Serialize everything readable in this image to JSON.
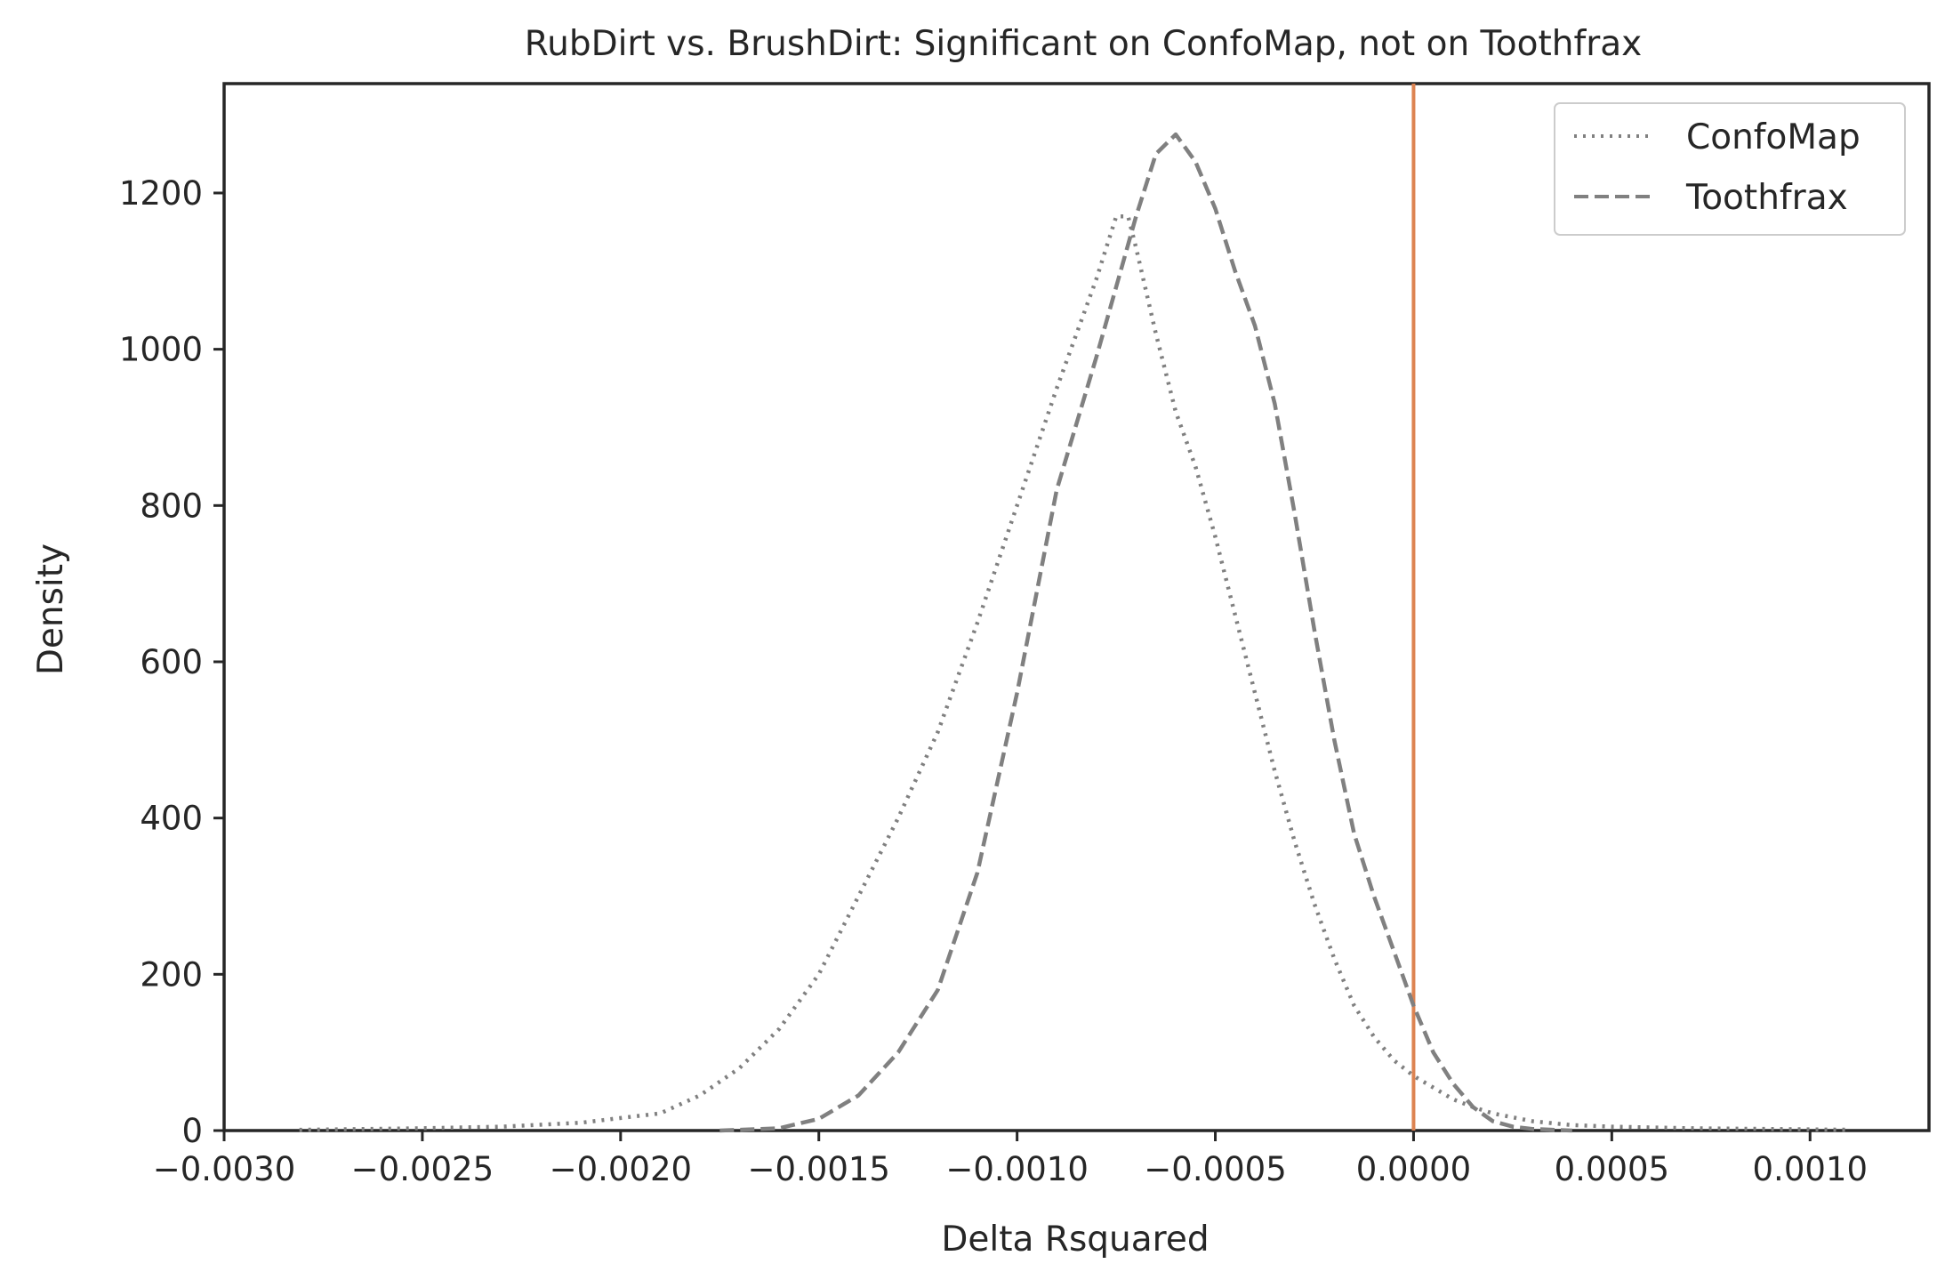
{
  "chart_data": {
    "type": "line",
    "title": "RubDirt vs. BrushDirt: Significant on ConfoMap, not on Toothfrax",
    "xlabel": "Delta Rsquared",
    "ylabel": "Density",
    "xlim": [
      -0.003,
      0.0013
    ],
    "ylim": [
      0,
      1340
    ],
    "xticks": [
      -0.003,
      -0.0025,
      -0.002,
      -0.0015,
      -0.001,
      -0.0005,
      0.0,
      0.0005,
      0.001
    ],
    "xtick_labels": [
      "−0.0030",
      "−0.0025",
      "−0.0020",
      "−0.0015",
      "−0.0010",
      "−0.0005",
      "0.0000",
      "0.0005",
      "0.0010"
    ],
    "yticks": [
      0,
      200,
      400,
      600,
      800,
      1000,
      1200
    ],
    "ytick_labels": [
      "0",
      "200",
      "400",
      "600",
      "800",
      "1000",
      "1200"
    ],
    "grid": false,
    "legend_position": "top-right",
    "reference_line": {
      "x": 0.0,
      "color": "#dd8452"
    },
    "series": [
      {
        "name": "ConfoMap",
        "style": "dotted",
        "color": "#808080",
        "points": [
          [
            -0.00281,
            1
          ],
          [
            -0.0025,
            3
          ],
          [
            -0.0023,
            5
          ],
          [
            -0.0021,
            10
          ],
          [
            -0.002,
            16
          ],
          [
            -0.0019,
            22
          ],
          [
            -0.0018,
            45
          ],
          [
            -0.0017,
            80
          ],
          [
            -0.0016,
            130
          ],
          [
            -0.0015,
            200
          ],
          [
            -0.0014,
            300
          ],
          [
            -0.0013,
            400
          ],
          [
            -0.0012,
            510
          ],
          [
            -0.0011,
            650
          ],
          [
            -0.001,
            800
          ],
          [
            -0.0009,
            950
          ],
          [
            -0.0008,
            1090
          ],
          [
            -0.00075,
            1170
          ],
          [
            -0.00072,
            1170
          ],
          [
            -0.0007,
            1130
          ],
          [
            -0.00065,
            1020
          ],
          [
            -0.0006,
            920
          ],
          [
            -0.00055,
            850
          ],
          [
            -0.0005,
            760
          ],
          [
            -0.00045,
            660
          ],
          [
            -0.0004,
            560
          ],
          [
            -0.00035,
            460
          ],
          [
            -0.0003,
            370
          ],
          [
            -0.00025,
            290
          ],
          [
            -0.0002,
            220
          ],
          [
            -0.00015,
            160
          ],
          [
            -0.0001,
            120
          ],
          [
            -5e-05,
            90
          ],
          [
            0.0,
            70
          ],
          [
            5e-05,
            55
          ],
          [
            0.0001,
            40
          ],
          [
            0.00015,
            30
          ],
          [
            0.0002,
            22
          ],
          [
            0.0003,
            12
          ],
          [
            0.0004,
            7
          ],
          [
            0.0005,
            5
          ],
          [
            0.0007,
            3
          ],
          [
            0.0009,
            2
          ],
          [
            0.0011,
            1
          ]
        ]
      },
      {
        "name": "Toothfrax",
        "style": "dashed",
        "color": "#808080",
        "points": [
          [
            -0.00175,
            0
          ],
          [
            -0.0016,
            3
          ],
          [
            -0.0015,
            15
          ],
          [
            -0.0014,
            45
          ],
          [
            -0.0013,
            100
          ],
          [
            -0.0012,
            180
          ],
          [
            -0.0011,
            330
          ],
          [
            -0.001,
            560
          ],
          [
            -0.0009,
            820
          ],
          [
            -0.0008,
            990
          ],
          [
            -0.00075,
            1080
          ],
          [
            -0.0007,
            1170
          ],
          [
            -0.00065,
            1250
          ],
          [
            -0.0006,
            1275
          ],
          [
            -0.00055,
            1240
          ],
          [
            -0.0005,
            1180
          ],
          [
            -0.00045,
            1100
          ],
          [
            -0.0004,
            1030
          ],
          [
            -0.00035,
            930
          ],
          [
            -0.0003,
            790
          ],
          [
            -0.00025,
            640
          ],
          [
            -0.0002,
            500
          ],
          [
            -0.00015,
            380
          ],
          [
            -0.0001,
            300
          ],
          [
            -5e-05,
            230
          ],
          [
            0.0,
            160
          ],
          [
            5e-05,
            100
          ],
          [
            0.0001,
            60
          ],
          [
            0.00015,
            30
          ],
          [
            0.0002,
            12
          ],
          [
            0.00025,
            5
          ],
          [
            0.0003,
            2
          ],
          [
            0.00035,
            1
          ],
          [
            0.0004,
            0
          ]
        ]
      }
    ]
  }
}
